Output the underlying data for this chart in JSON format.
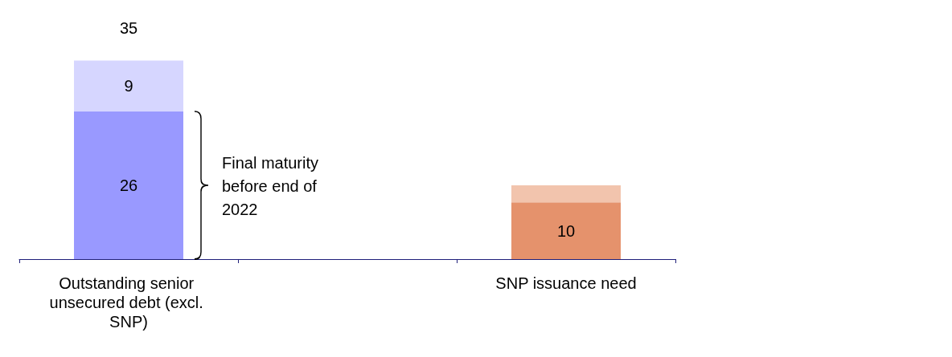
{
  "chart_data": {
    "type": "bar",
    "stacked": true,
    "categories": [
      "Outstanding senior unsecured debt (excl. SNP)",
      null,
      "SNP issuance need"
    ],
    "series": [
      {
        "colors": [
          "#9999ff",
          null,
          "#e5926c"
        ],
        "values": [
          26,
          null,
          10
        ],
        "value_labels": [
          "26",
          null,
          "10"
        ]
      },
      {
        "colors": [
          "#d6d6ff",
          null,
          "#f2c4ad"
        ],
        "values": [
          9,
          null,
          3
        ],
        "value_labels": [
          "9",
          null,
          null
        ]
      }
    ],
    "totals": [
      "35",
      null,
      null
    ],
    "annotations": [
      "Final maturity before end of 2022"
    ]
  }
}
